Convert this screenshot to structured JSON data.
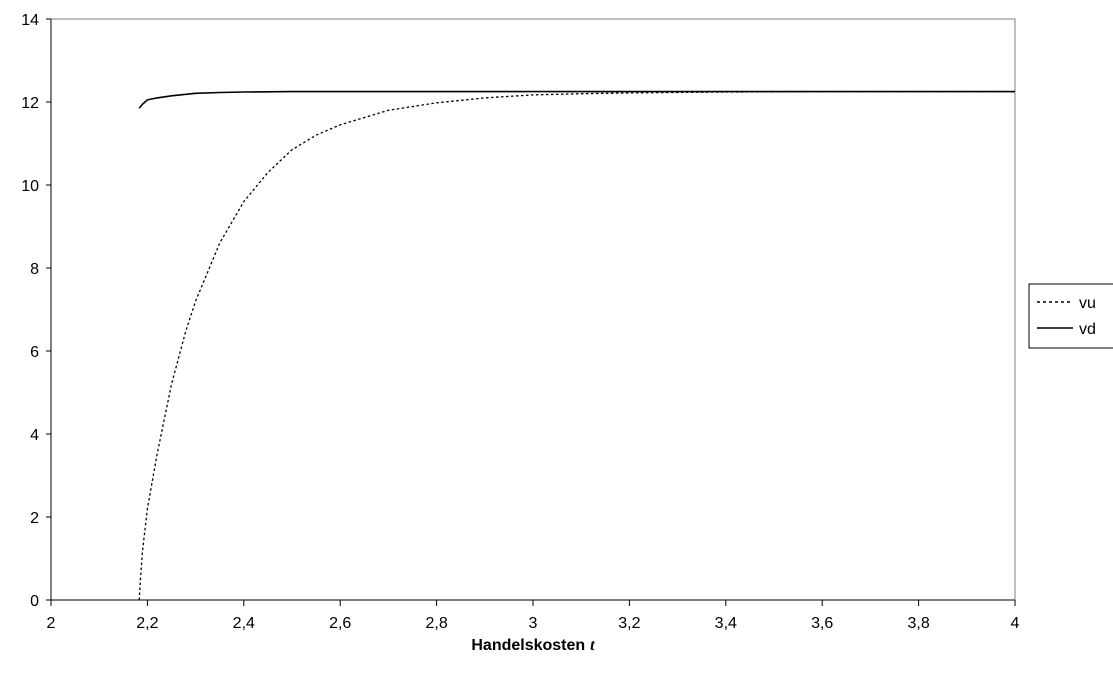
{
  "chart_data": {
    "type": "line",
    "title": "",
    "xlabel": "Handelskosten",
    "xlabel_var": "t",
    "ylabel": "",
    "xlim": [
      2,
      4
    ],
    "ylim": [
      0,
      14
    ],
    "x_ticks": [
      2,
      2.2,
      2.4,
      2.6,
      2.8,
      3,
      3.2,
      3.4,
      3.6,
      3.8,
      4
    ],
    "x_tick_labels": [
      "2",
      "2,2",
      "2,4",
      "2,6",
      "2,8",
      "3",
      "3,2",
      "3,4",
      "3,6",
      "3,8",
      "4"
    ],
    "y_ticks": [
      0,
      2,
      4,
      6,
      8,
      10,
      12,
      14
    ],
    "y_tick_labels": [
      "0",
      "2",
      "4",
      "6",
      "8",
      "10",
      "12",
      "14"
    ],
    "grid": false,
    "legend": "right",
    "series": [
      {
        "name": "vu",
        "style": "dotted",
        "color": "#000000",
        "points": [
          [
            2.183,
            0
          ],
          [
            2.186,
            0.6
          ],
          [
            2.19,
            1.2
          ],
          [
            2.2,
            2.2
          ],
          [
            2.22,
            3.5
          ],
          [
            2.25,
            5.2
          ],
          [
            2.28,
            6.5
          ],
          [
            2.3,
            7.2
          ],
          [
            2.35,
            8.6
          ],
          [
            2.4,
            9.6
          ],
          [
            2.45,
            10.3
          ],
          [
            2.5,
            10.85
          ],
          [
            2.55,
            11.2
          ],
          [
            2.6,
            11.45
          ],
          [
            2.7,
            11.8
          ],
          [
            2.8,
            11.98
          ],
          [
            2.9,
            12.1
          ],
          [
            3.0,
            12.17
          ],
          [
            3.1,
            12.2
          ],
          [
            3.2,
            12.22
          ],
          [
            3.4,
            12.24
          ],
          [
            3.6,
            12.25
          ],
          [
            3.8,
            12.25
          ],
          [
            4.0,
            12.25
          ]
        ]
      },
      {
        "name": "vd",
        "style": "solid",
        "color": "#000000",
        "points": [
          [
            2.183,
            11.85
          ],
          [
            2.19,
            11.95
          ],
          [
            2.2,
            12.05
          ],
          [
            2.22,
            12.1
          ],
          [
            2.25,
            12.15
          ],
          [
            2.3,
            12.21
          ],
          [
            2.35,
            12.23
          ],
          [
            2.4,
            12.24
          ],
          [
            2.5,
            12.25
          ],
          [
            2.6,
            12.25
          ],
          [
            3.0,
            12.25
          ],
          [
            3.5,
            12.25
          ],
          [
            4.0,
            12.25
          ]
        ]
      }
    ]
  }
}
